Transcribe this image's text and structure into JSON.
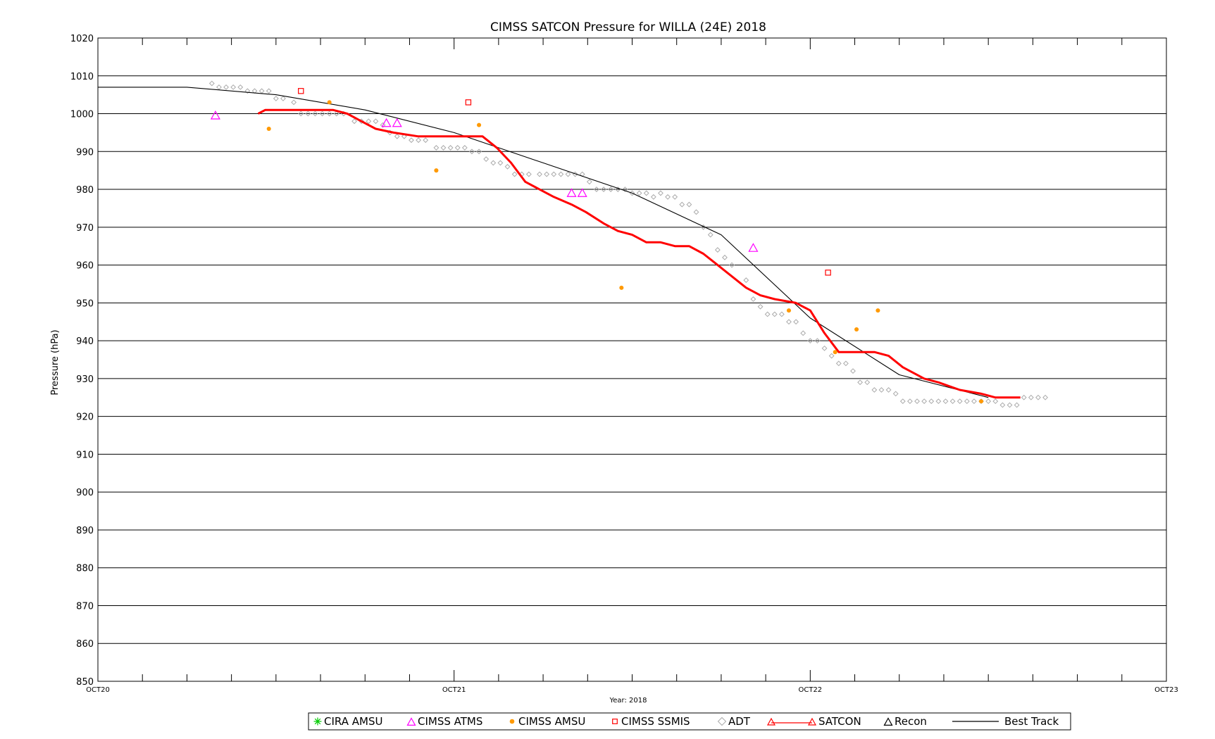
{
  "chart_data": {
    "type": "scatter",
    "title": "CIMSS SATCON Pressure for WILLA (24E) 2018",
    "xlabel": "Year: 2018",
    "ylabel": "Pressure (hPa)",
    "x_unit": "days since OCT20 00Z (tick labels: OCT20, OCT21, OCT22, OCT23)",
    "xlim": [
      0,
      3
    ],
    "ylim": [
      850,
      1020
    ],
    "x_ticks": [
      {
        "x": 0,
        "label": "OCT20"
      },
      {
        "x": 1,
        "label": "OCT21"
      },
      {
        "x": 2,
        "label": "OCT22"
      },
      {
        "x": 3,
        "label": "OCT23"
      }
    ],
    "y_ticks": [
      850,
      860,
      870,
      880,
      890,
      900,
      910,
      920,
      930,
      940,
      950,
      960,
      970,
      980,
      990,
      1000,
      1010,
      1020
    ],
    "grid": "horizontal",
    "legend_position": "bottom",
    "series": [
      {
        "name": "CIRA AMSU",
        "marker": "asterisk",
        "color": "#00cc00",
        "points": []
      },
      {
        "name": "CIMSS ATMS",
        "marker": "triangle",
        "color": "#ff00ff",
        "points": [
          [
            0.33,
            999.5
          ],
          [
            0.81,
            997.5
          ],
          [
            0.84,
            997.5
          ],
          [
            1.33,
            979
          ],
          [
            1.36,
            979
          ],
          [
            1.84,
            964.5
          ]
        ]
      },
      {
        "name": "CIMSS AMSU",
        "marker": "dot",
        "color": "#ff9900",
        "points": [
          [
            0.48,
            996
          ],
          [
            0.65,
            1003
          ],
          [
            0.95,
            985
          ],
          [
            1.07,
            997
          ],
          [
            1.47,
            954
          ],
          [
            1.94,
            948
          ],
          [
            2.07,
            937
          ],
          [
            2.13,
            943
          ],
          [
            2.19,
            948
          ],
          [
            2.48,
            924
          ]
        ]
      },
      {
        "name": "CIMSS SSMIS",
        "marker": "square",
        "color": "#ff0000",
        "points": [
          [
            0.57,
            1006
          ],
          [
            1.04,
            1003
          ],
          [
            2.05,
            958
          ]
        ]
      },
      {
        "name": "ADT",
        "marker": "diamond",
        "color": "#aaaaaa",
        "points": [
          [
            0.32,
            1008
          ],
          [
            0.34,
            1007
          ],
          [
            0.36,
            1007
          ],
          [
            0.38,
            1007
          ],
          [
            0.4,
            1007
          ],
          [
            0.42,
            1006
          ],
          [
            0.44,
            1006
          ],
          [
            0.46,
            1006
          ],
          [
            0.48,
            1006
          ],
          [
            0.5,
            1004
          ],
          [
            0.52,
            1004
          ],
          [
            0.55,
            1003
          ],
          [
            0.57,
            1000
          ],
          [
            0.59,
            1000
          ],
          [
            0.61,
            1000
          ],
          [
            0.63,
            1000
          ],
          [
            0.65,
            1000
          ],
          [
            0.67,
            1000
          ],
          [
            0.69,
            1000
          ],
          [
            0.72,
            998
          ],
          [
            0.74,
            998
          ],
          [
            0.76,
            998
          ],
          [
            0.78,
            998
          ],
          [
            0.8,
            997
          ],
          [
            0.82,
            995
          ],
          [
            0.84,
            994
          ],
          [
            0.86,
            994
          ],
          [
            0.88,
            993
          ],
          [
            0.9,
            993
          ],
          [
            0.92,
            993
          ],
          [
            0.95,
            991
          ],
          [
            0.97,
            991
          ],
          [
            0.99,
            991
          ],
          [
            1.01,
            991
          ],
          [
            1.03,
            991
          ],
          [
            1.05,
            990
          ],
          [
            1.07,
            990
          ],
          [
            1.09,
            988
          ],
          [
            1.11,
            987
          ],
          [
            1.13,
            987
          ],
          [
            1.15,
            986
          ],
          [
            1.17,
            984
          ],
          [
            1.19,
            984
          ],
          [
            1.21,
            984
          ],
          [
            1.24,
            984
          ],
          [
            1.26,
            984
          ],
          [
            1.28,
            984
          ],
          [
            1.3,
            984
          ],
          [
            1.32,
            984
          ],
          [
            1.34,
            984
          ],
          [
            1.36,
            984
          ],
          [
            1.38,
            982
          ],
          [
            1.4,
            980
          ],
          [
            1.42,
            980
          ],
          [
            1.44,
            980
          ],
          [
            1.46,
            980
          ],
          [
            1.48,
            980
          ],
          [
            1.5,
            979
          ],
          [
            1.52,
            979
          ],
          [
            1.54,
            979
          ],
          [
            1.56,
            978
          ],
          [
            1.58,
            979
          ],
          [
            1.6,
            978
          ],
          [
            1.62,
            978
          ],
          [
            1.64,
            976
          ],
          [
            1.66,
            976
          ],
          [
            1.68,
            974
          ],
          [
            1.7,
            970
          ],
          [
            1.72,
            968
          ],
          [
            1.74,
            964
          ],
          [
            1.76,
            962
          ],
          [
            1.78,
            960
          ],
          [
            1.82,
            956
          ],
          [
            1.84,
            951
          ],
          [
            1.86,
            949
          ],
          [
            1.88,
            947
          ],
          [
            1.9,
            947
          ],
          [
            1.92,
            947
          ],
          [
            1.94,
            945
          ],
          [
            1.96,
            945
          ],
          [
            1.98,
            942
          ],
          [
            2.0,
            940
          ],
          [
            2.02,
            940
          ],
          [
            2.04,
            938
          ],
          [
            2.06,
            936
          ],
          [
            2.08,
            934
          ],
          [
            2.1,
            934
          ],
          [
            2.12,
            932
          ],
          [
            2.14,
            929
          ],
          [
            2.16,
            929
          ],
          [
            2.18,
            927
          ],
          [
            2.2,
            927
          ],
          [
            2.22,
            927
          ],
          [
            2.24,
            926
          ],
          [
            2.26,
            924
          ],
          [
            2.28,
            924
          ],
          [
            2.3,
            924
          ],
          [
            2.32,
            924
          ],
          [
            2.34,
            924
          ],
          [
            2.36,
            924
          ],
          [
            2.38,
            924
          ],
          [
            2.4,
            924
          ],
          [
            2.42,
            924
          ],
          [
            2.44,
            924
          ],
          [
            2.46,
            924
          ],
          [
            2.48,
            924
          ],
          [
            2.5,
            924
          ],
          [
            2.52,
            924
          ],
          [
            2.54,
            923
          ],
          [
            2.56,
            923
          ],
          [
            2.58,
            923
          ],
          [
            2.6,
            925
          ],
          [
            2.62,
            925
          ],
          [
            2.64,
            925
          ],
          [
            2.66,
            925
          ]
        ]
      },
      {
        "name": "SATCON",
        "marker": "line",
        "color": "#ff0000",
        "points": [
          [
            0.45,
            1000
          ],
          [
            0.47,
            1001
          ],
          [
            0.52,
            1001
          ],
          [
            0.57,
            1001
          ],
          [
            0.62,
            1001
          ],
          [
            0.66,
            1001
          ],
          [
            0.7,
            1000
          ],
          [
            0.74,
            998
          ],
          [
            0.78,
            996
          ],
          [
            0.83,
            995
          ],
          [
            0.9,
            994
          ],
          [
            0.96,
            994
          ],
          [
            1.03,
            994
          ],
          [
            1.08,
            994
          ],
          [
            1.12,
            991
          ],
          [
            1.16,
            987
          ],
          [
            1.2,
            982
          ],
          [
            1.24,
            980
          ],
          [
            1.28,
            978
          ],
          [
            1.33,
            976
          ],
          [
            1.37,
            974
          ],
          [
            1.42,
            971
          ],
          [
            1.46,
            969
          ],
          [
            1.5,
            968
          ],
          [
            1.54,
            966
          ],
          [
            1.58,
            966
          ],
          [
            1.62,
            965
          ],
          [
            1.66,
            965
          ],
          [
            1.7,
            963
          ],
          [
            1.74,
            960
          ],
          [
            1.78,
            957
          ],
          [
            1.82,
            954
          ],
          [
            1.86,
            952
          ],
          [
            1.9,
            951
          ],
          [
            1.96,
            950
          ],
          [
            2.0,
            948
          ],
          [
            2.04,
            942
          ],
          [
            2.08,
            937
          ],
          [
            2.12,
            937
          ],
          [
            2.18,
            937
          ],
          [
            2.22,
            936
          ],
          [
            2.26,
            933
          ],
          [
            2.32,
            930
          ],
          [
            2.36,
            929
          ],
          [
            2.42,
            927
          ],
          [
            2.48,
            926
          ],
          [
            2.52,
            925
          ],
          [
            2.56,
            925
          ],
          [
            2.59,
            925
          ]
        ]
      },
      {
        "name": "Recon",
        "marker": "triangle",
        "color": "#000000",
        "points": []
      },
      {
        "name": "Best Track",
        "marker": "line",
        "color": "#000000",
        "points": [
          [
            0,
            1007
          ],
          [
            0.25,
            1007
          ],
          [
            0.5,
            1005
          ],
          [
            0.75,
            1001
          ],
          [
            1.0,
            995
          ],
          [
            1.25,
            987
          ],
          [
            1.5,
            979
          ],
          [
            1.75,
            968
          ],
          [
            2.0,
            946
          ],
          [
            2.25,
            931
          ],
          [
            2.5,
            925
          ]
        ]
      }
    ]
  }
}
